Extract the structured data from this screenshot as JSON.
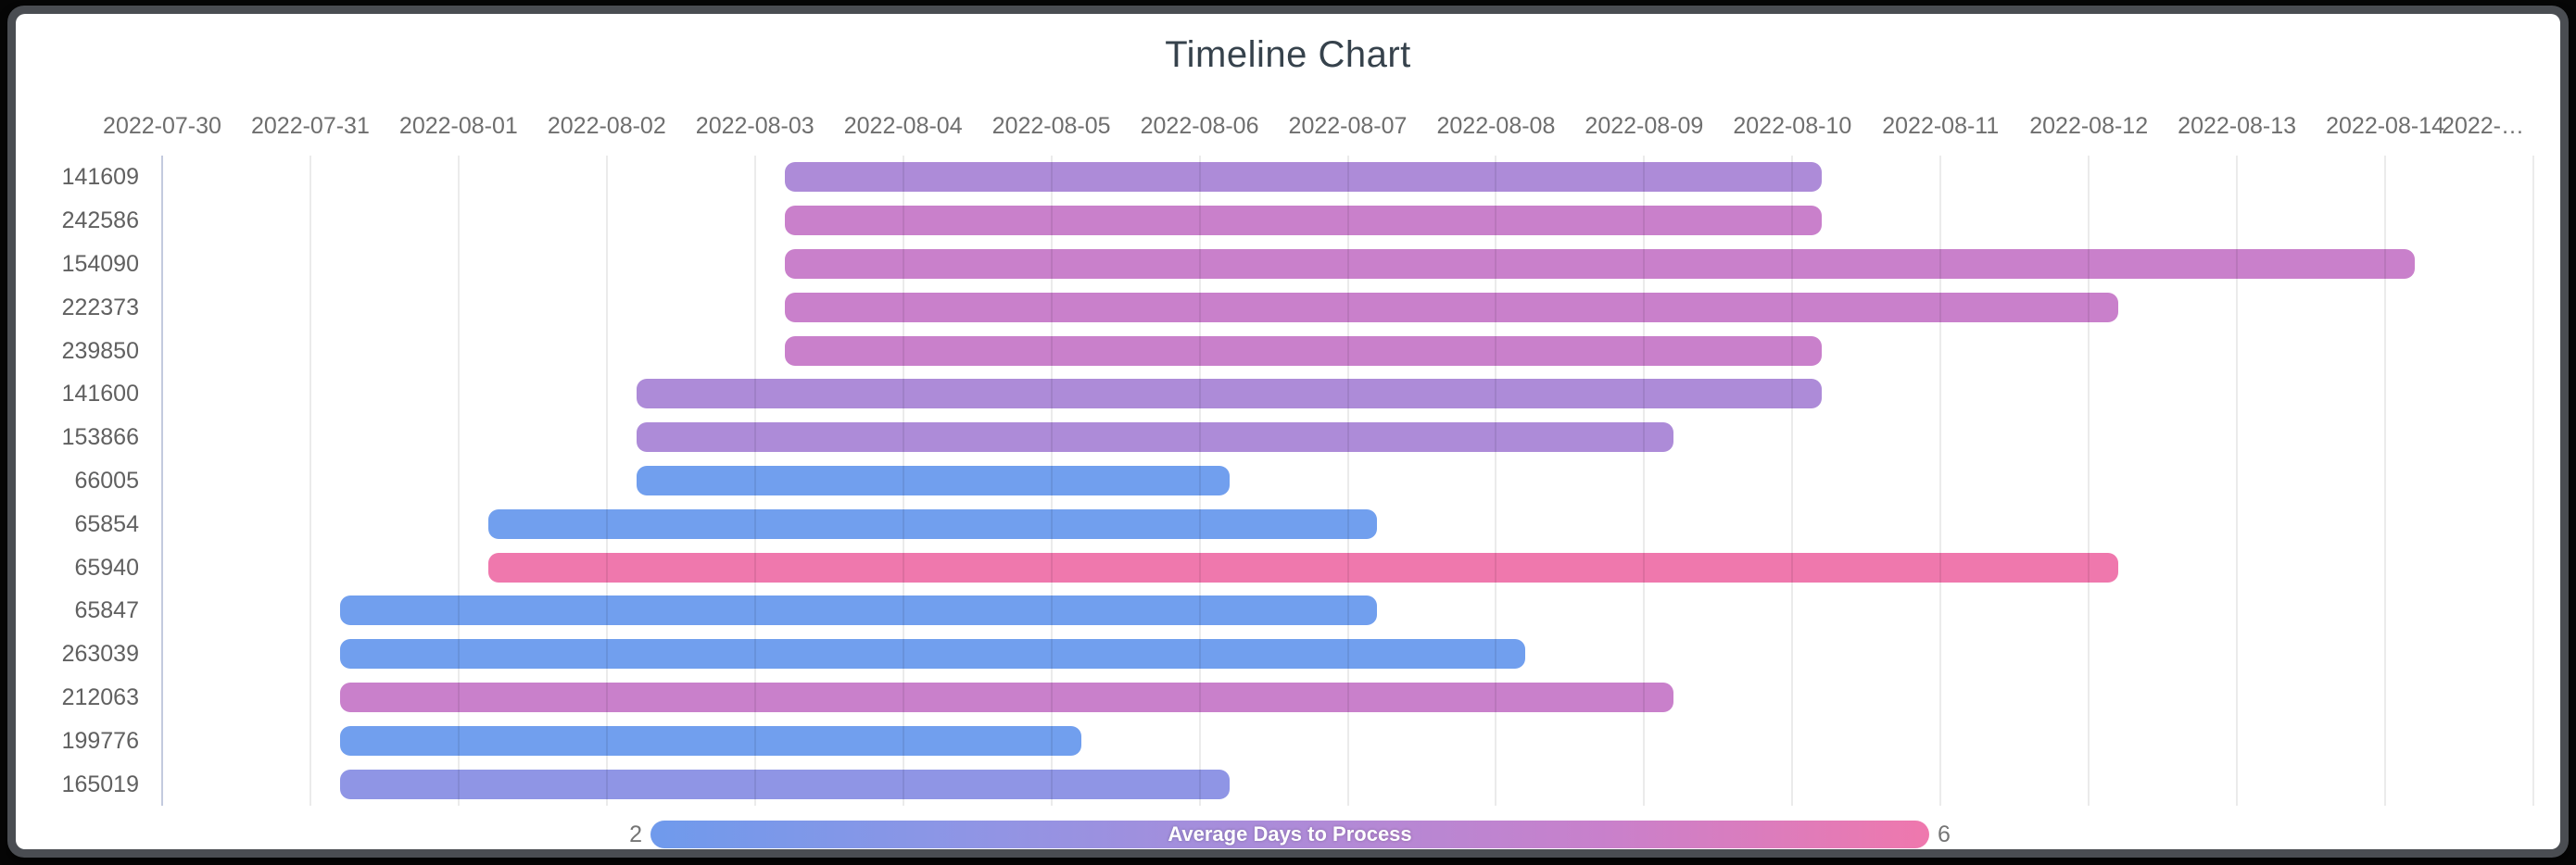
{
  "window": {
    "frame_color": "#4a4d52",
    "page_background": "#060606",
    "card_background": "#ffffff"
  },
  "chart_data": {
    "type": "timeline_range_bar",
    "title": "Timeline Chart",
    "x_axis": {
      "base_date": "2022-07-30",
      "num_days": 16,
      "tick_labels": [
        "2022-07-30",
        "2022-07-31",
        "2022-08-01",
        "2022-08-02",
        "2022-08-03",
        "2022-08-04",
        "2022-08-05",
        "2022-08-06",
        "2022-08-07",
        "2022-08-08",
        "2022-08-09",
        "2022-08-10",
        "2022-08-11",
        "2022-08-12",
        "2022-08-13",
        "2022-08-14",
        "2022-…"
      ],
      "gridline_color": "rgba(0,0,0,0.08)",
      "axis_line_color": "#c3cade"
    },
    "rows": [
      {
        "id": "141609",
        "start": "2022-08-03",
        "end": "2022-08-10",
        "avg_days": 4,
        "color": "#ad8bd8"
      },
      {
        "id": "242586",
        "start": "2022-08-03",
        "end": "2022-08-10",
        "avg_days": 5,
        "color": "#c980cb"
      },
      {
        "id": "154090",
        "start": "2022-08-03",
        "end": "2022-08-14",
        "avg_days": 5,
        "color": "#c980cb"
      },
      {
        "id": "222373",
        "start": "2022-08-03",
        "end": "2022-08-12",
        "avg_days": 5,
        "color": "#c980cb"
      },
      {
        "id": "239850",
        "start": "2022-08-03",
        "end": "2022-08-10",
        "avg_days": 5,
        "color": "#c980cb"
      },
      {
        "id": "141600",
        "start": "2022-08-02",
        "end": "2022-08-10",
        "avg_days": 4,
        "color": "#ad8bd8"
      },
      {
        "id": "153866",
        "start": "2022-08-02",
        "end": "2022-08-09",
        "avg_days": 4,
        "color": "#ad8bd8"
      },
      {
        "id": "66005",
        "start": "2022-08-02",
        "end": "2022-08-06",
        "avg_days": 2,
        "color": "#719fee"
      },
      {
        "id": "65854",
        "start": "2022-08-01",
        "end": "2022-08-07",
        "avg_days": 2,
        "color": "#719fee"
      },
      {
        "id": "65940",
        "start": "2022-08-01",
        "end": "2022-08-12",
        "avg_days": 6,
        "color": "#ef78ad"
      },
      {
        "id": "65847",
        "start": "2022-07-31",
        "end": "2022-08-07",
        "avg_days": 2,
        "color": "#719fee"
      },
      {
        "id": "263039",
        "start": "2022-07-31",
        "end": "2022-08-08",
        "avg_days": 2,
        "color": "#719fee"
      },
      {
        "id": "212063",
        "start": "2022-07-31",
        "end": "2022-08-09",
        "avg_days": 5,
        "color": "#c980cb"
      },
      {
        "id": "199776",
        "start": "2022-07-31",
        "end": "2022-08-05",
        "avg_days": 2,
        "color": "#719fee"
      },
      {
        "id": "165019",
        "start": "2022-07-31",
        "end": "2022-08-06",
        "avg_days": 3,
        "color": "#8f95e5"
      }
    ],
    "legend": {
      "label": "Average Days to Process",
      "min": "2",
      "max": "6",
      "gradient": [
        "#6f9aec",
        "#8f95e5",
        "#ad8bd8",
        "#c980cb",
        "#ef78ad"
      ]
    }
  }
}
